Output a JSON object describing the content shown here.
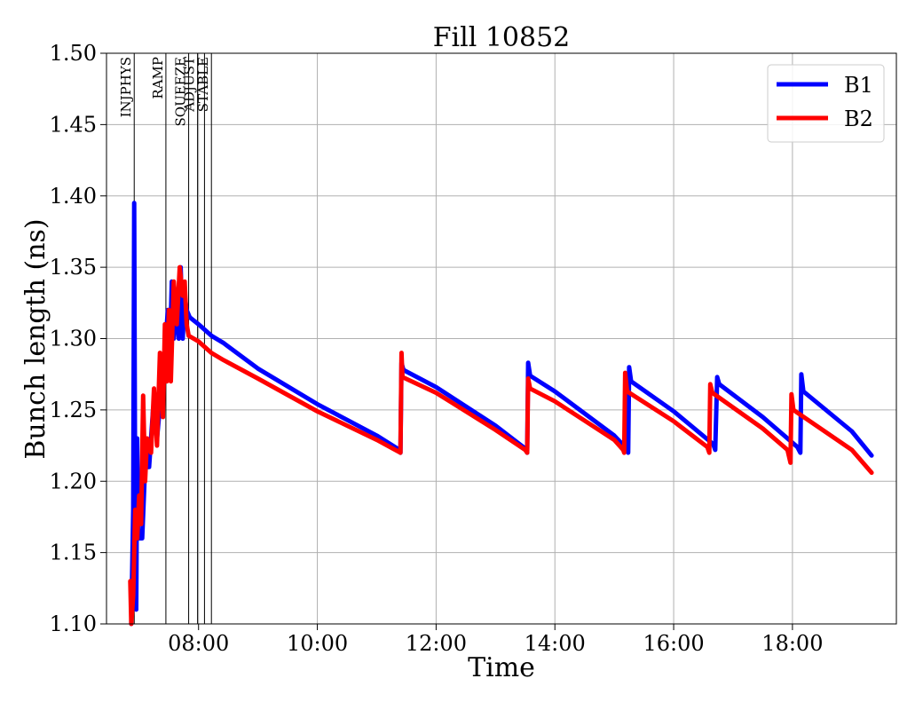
{
  "chart_data": {
    "type": "line",
    "title": "Fill 10852",
    "xlabel": "Time",
    "ylabel": "Bunch length (ns)",
    "xlim": [
      "06:27",
      "19:45"
    ],
    "ylim": [
      1.1,
      1.5
    ],
    "yticks": [
      1.1,
      1.15,
      1.2,
      1.25,
      1.3,
      1.35,
      1.4,
      1.45,
      1.5
    ],
    "xticks": [
      "08:00",
      "10:00",
      "12:00",
      "14:00",
      "16:00",
      "18:00"
    ],
    "grid": true,
    "legend_position": "top-right",
    "phases": [
      {
        "name": "INJPHYS",
        "time": "06:55"
      },
      {
        "name": "RAMP",
        "time": "07:27"
      },
      {
        "name": "SQUEEZE",
        "time": "07:50"
      },
      {
        "name": "ADJUST",
        "time": "07:59"
      },
      {
        "name": "",
        "time": "08:06"
      },
      {
        "name": "STABLE",
        "time": "08:13"
      }
    ],
    "series": [
      {
        "name": "B1",
        "color": "#0000ff",
        "points": [
          [
            "06:52",
            1.1
          ],
          [
            "06:54",
            1.18
          ],
          [
            "06:55",
            1.395
          ],
          [
            "06:56",
            1.18
          ],
          [
            "06:57",
            1.11
          ],
          [
            "06:58",
            1.23
          ],
          [
            "06:59",
            1.16
          ],
          [
            "07:03",
            1.16
          ],
          [
            "07:06",
            1.21
          ],
          [
            "07:10",
            1.21
          ],
          [
            "07:14",
            1.25
          ],
          [
            "07:18",
            1.23
          ],
          [
            "07:22",
            1.26
          ],
          [
            "07:25",
            1.28
          ],
          [
            "07:27",
            1.3
          ],
          [
            "07:29",
            1.32
          ],
          [
            "07:31",
            1.29
          ],
          [
            "07:33",
            1.34
          ],
          [
            "07:35",
            1.3
          ],
          [
            "07:37",
            1.33
          ],
          [
            "07:40",
            1.3
          ],
          [
            "07:42",
            1.35
          ],
          [
            "07:44",
            1.3
          ],
          [
            "07:46",
            1.33
          ],
          [
            "07:48",
            1.32
          ],
          [
            "07:51",
            1.315
          ],
          [
            "08:00",
            1.31
          ],
          [
            "08:13",
            1.302
          ],
          [
            "08:25",
            1.297
          ],
          [
            "09:00",
            1.279
          ],
          [
            "10:00",
            1.254
          ],
          [
            "11:00",
            1.232
          ],
          [
            "11:23",
            1.222
          ],
          [
            "11:24",
            1.22
          ],
          [
            "11:25",
            1.283
          ],
          [
            "11:27",
            1.278
          ],
          [
            "12:00",
            1.266
          ],
          [
            "13:00",
            1.239
          ],
          [
            "13:30",
            1.223
          ],
          [
            "13:32",
            1.22
          ],
          [
            "13:33",
            1.283
          ],
          [
            "13:35",
            1.274
          ],
          [
            "14:00",
            1.263
          ],
          [
            "15:00",
            1.232
          ],
          [
            "15:11",
            1.224
          ],
          [
            "15:14",
            1.22
          ],
          [
            "15:15",
            1.28
          ],
          [
            "15:17",
            1.27
          ],
          [
            "16:00",
            1.249
          ],
          [
            "16:40",
            1.226
          ],
          [
            "16:42",
            1.222
          ],
          [
            "16:44",
            1.273
          ],
          [
            "16:46",
            1.268
          ],
          [
            "17:30",
            1.245
          ],
          [
            "18:05",
            1.224
          ],
          [
            "18:08",
            1.22
          ],
          [
            "18:09",
            1.275
          ],
          [
            "18:11",
            1.263
          ],
          [
            "19:00",
            1.235
          ],
          [
            "19:20",
            1.218
          ]
        ]
      },
      {
        "name": "B2",
        "color": "#ff0000",
        "points": [
          [
            "06:51",
            1.13
          ],
          [
            "06:52",
            1.1
          ],
          [
            "06:54",
            1.12
          ],
          [
            "06:56",
            1.18
          ],
          [
            "06:58",
            1.16
          ],
          [
            "07:00",
            1.19
          ],
          [
            "07:02",
            1.17
          ],
          [
            "07:04",
            1.26
          ],
          [
            "07:06",
            1.2
          ],
          [
            "07:08",
            1.23
          ],
          [
            "07:12",
            1.22
          ],
          [
            "07:15",
            1.265
          ],
          [
            "07:18",
            1.225
          ],
          [
            "07:21",
            1.29
          ],
          [
            "07:24",
            1.245
          ],
          [
            "07:26",
            1.31
          ],
          [
            "07:28",
            1.27
          ],
          [
            "07:30",
            1.32
          ],
          [
            "07:32",
            1.27
          ],
          [
            "07:35",
            1.34
          ],
          [
            "07:38",
            1.31
          ],
          [
            "07:41",
            1.35
          ],
          [
            "07:44",
            1.33
          ],
          [
            "07:46",
            1.34
          ],
          [
            "07:48",
            1.31
          ],
          [
            "07:50",
            1.302
          ],
          [
            "08:00",
            1.298
          ],
          [
            "08:13",
            1.29
          ],
          [
            "08:25",
            1.285
          ],
          [
            "09:00",
            1.272
          ],
          [
            "10:00",
            1.249
          ],
          [
            "11:00",
            1.229
          ],
          [
            "11:24",
            1.22
          ],
          [
            "11:25",
            1.29
          ],
          [
            "11:26",
            1.273
          ],
          [
            "12:00",
            1.262
          ],
          [
            "13:00",
            1.236
          ],
          [
            "13:30",
            1.222
          ],
          [
            "13:32",
            1.22
          ],
          [
            "13:33",
            1.272
          ],
          [
            "13:35",
            1.265
          ],
          [
            "14:00",
            1.256
          ],
          [
            "15:00",
            1.229
          ],
          [
            "15:09",
            1.222
          ],
          [
            "15:10",
            1.22
          ],
          [
            "15:11",
            1.276
          ],
          [
            "15:13",
            1.263
          ],
          [
            "16:00",
            1.242
          ],
          [
            "16:34",
            1.224
          ],
          [
            "16:36",
            1.22
          ],
          [
            "16:37",
            1.268
          ],
          [
            "16:39",
            1.262
          ],
          [
            "17:30",
            1.237
          ],
          [
            "17:55",
            1.222
          ],
          [
            "17:58",
            1.213
          ],
          [
            "17:59",
            1.261
          ],
          [
            "18:01",
            1.25
          ],
          [
            "19:00",
            1.222
          ],
          [
            "19:20",
            1.206
          ]
        ]
      }
    ]
  }
}
